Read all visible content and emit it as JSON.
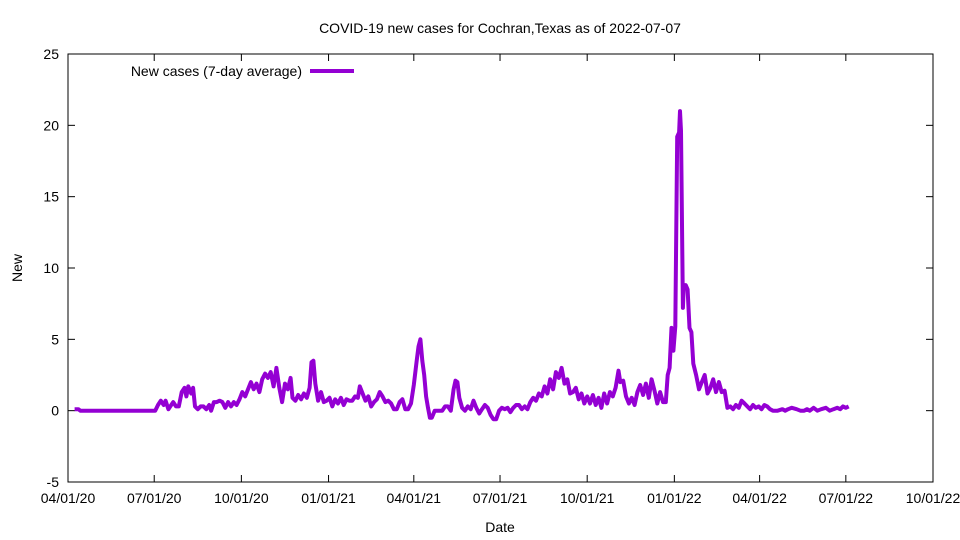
{
  "chart_data": {
    "type": "line",
    "title": "COVID-19 new cases for Cochran,Texas as of 2022-07-07",
    "xlabel": "Date",
    "ylabel": "New",
    "ylim": [
      -5,
      25
    ],
    "yticks": [
      -5,
      0,
      5,
      10,
      15,
      20,
      25
    ],
    "xlim": [
      "2020-04-01",
      "2022-10-01"
    ],
    "xticks": [
      {
        "date": "2020-04-01",
        "label": "04/01/20"
      },
      {
        "date": "2020-07-01",
        "label": "07/01/20"
      },
      {
        "date": "2020-10-01",
        "label": "10/01/20"
      },
      {
        "date": "2021-01-01",
        "label": "01/01/21"
      },
      {
        "date": "2021-04-01",
        "label": "04/01/21"
      },
      {
        "date": "2021-07-01",
        "label": "07/01/21"
      },
      {
        "date": "2021-10-01",
        "label": "10/01/21"
      },
      {
        "date": "2022-01-01",
        "label": "01/01/22"
      },
      {
        "date": "2022-04-01",
        "label": "04/01/22"
      },
      {
        "date": "2022-07-01",
        "label": "07/01/22"
      },
      {
        "date": "2022-10-01",
        "label": "10/01/22"
      }
    ],
    "legend": "top-left",
    "grid": false,
    "series": [
      {
        "name": "New cases (7-day average)",
        "color": "#9400d3",
        "points": [
          [
            "2020-04-08",
            0.1
          ],
          [
            "2020-04-12",
            0.1
          ],
          [
            "2020-04-14",
            0
          ],
          [
            "2020-05-15",
            0
          ],
          [
            "2020-06-20",
            0
          ],
          [
            "2020-07-02",
            0
          ],
          [
            "2020-07-05",
            0.4
          ],
          [
            "2020-07-08",
            0.7
          ],
          [
            "2020-07-11",
            0.4
          ],
          [
            "2020-07-13",
            0.7
          ],
          [
            "2020-07-16",
            0.1
          ],
          [
            "2020-07-18",
            0.3
          ],
          [
            "2020-07-21",
            0.6
          ],
          [
            "2020-07-24",
            0.3
          ],
          [
            "2020-07-27",
            0.3
          ],
          [
            "2020-07-30",
            1.3
          ],
          [
            "2020-08-02",
            1.6
          ],
          [
            "2020-08-04",
            1.0
          ],
          [
            "2020-08-06",
            1.7
          ],
          [
            "2020-08-09",
            1.2
          ],
          [
            "2020-08-11",
            1.6
          ],
          [
            "2020-08-13",
            0.3
          ],
          [
            "2020-08-16",
            0.1
          ],
          [
            "2020-08-19",
            0.3
          ],
          [
            "2020-08-22",
            0.3
          ],
          [
            "2020-08-25",
            0.1
          ],
          [
            "2020-08-28",
            0.4
          ],
          [
            "2020-08-30",
            0.0
          ],
          [
            "2020-09-02",
            0.6
          ],
          [
            "2020-09-05",
            0.6
          ],
          [
            "2020-09-08",
            0.7
          ],
          [
            "2020-09-11",
            0.6
          ],
          [
            "2020-09-14",
            0.2
          ],
          [
            "2020-09-17",
            0.6
          ],
          [
            "2020-09-20",
            0.3
          ],
          [
            "2020-09-23",
            0.6
          ],
          [
            "2020-09-26",
            0.4
          ],
          [
            "2020-09-29",
            0.8
          ],
          [
            "2020-10-02",
            1.3
          ],
          [
            "2020-10-05",
            1.0
          ],
          [
            "2020-10-08",
            1.5
          ],
          [
            "2020-10-11",
            2.0
          ],
          [
            "2020-10-14",
            1.5
          ],
          [
            "2020-10-17",
            1.9
          ],
          [
            "2020-10-20",
            1.3
          ],
          [
            "2020-10-23",
            2.2
          ],
          [
            "2020-10-26",
            2.6
          ],
          [
            "2020-10-29",
            2.3
          ],
          [
            "2020-11-01",
            2.7
          ],
          [
            "2020-11-04",
            1.7
          ],
          [
            "2020-11-07",
            3.0
          ],
          [
            "2020-11-10",
            1.6
          ],
          [
            "2020-11-13",
            0.6
          ],
          [
            "2020-11-16",
            1.9
          ],
          [
            "2020-11-19",
            1.5
          ],
          [
            "2020-11-22",
            2.3
          ],
          [
            "2020-11-24",
            0.9
          ],
          [
            "2020-11-27",
            0.7
          ],
          [
            "2020-11-30",
            1.1
          ],
          [
            "2020-12-03",
            0.8
          ],
          [
            "2020-12-06",
            1.2
          ],
          [
            "2020-12-09",
            0.9
          ],
          [
            "2020-12-12",
            1.6
          ],
          [
            "2020-12-14",
            3.4
          ],
          [
            "2020-12-16",
            3.5
          ],
          [
            "2020-12-18",
            1.9
          ],
          [
            "2020-12-21",
            0.7
          ],
          [
            "2020-12-24",
            1.3
          ],
          [
            "2020-12-27",
            0.6
          ],
          [
            "2020-12-30",
            0.7
          ],
          [
            "2021-01-02",
            0.9
          ],
          [
            "2021-01-05",
            0.3
          ],
          [
            "2021-01-08",
            0.8
          ],
          [
            "2021-01-11",
            0.5
          ],
          [
            "2021-01-14",
            0.9
          ],
          [
            "2021-01-17",
            0.4
          ],
          [
            "2021-01-20",
            0.8
          ],
          [
            "2021-01-23",
            0.7
          ],
          [
            "2021-01-26",
            0.7
          ],
          [
            "2021-01-29",
            1.0
          ],
          [
            "2021-02-01",
            0.9
          ],
          [
            "2021-02-03",
            1.7
          ],
          [
            "2021-02-06",
            1.2
          ],
          [
            "2021-02-09",
            0.7
          ],
          [
            "2021-02-12",
            1.0
          ],
          [
            "2021-02-15",
            0.3
          ],
          [
            "2021-02-18",
            0.6
          ],
          [
            "2021-02-21",
            0.8
          ],
          [
            "2021-02-24",
            1.3
          ],
          [
            "2021-02-27",
            1.0
          ],
          [
            "2021-03-02",
            0.6
          ],
          [
            "2021-03-05",
            0.7
          ],
          [
            "2021-03-08",
            0.5
          ],
          [
            "2021-03-11",
            0.1
          ],
          [
            "2021-03-14",
            0.1
          ],
          [
            "2021-03-17",
            0.6
          ],
          [
            "2021-03-20",
            0.8
          ],
          [
            "2021-03-23",
            0.1
          ],
          [
            "2021-03-26",
            0.1
          ],
          [
            "2021-03-29",
            0.5
          ],
          [
            "2021-04-01",
            1.8
          ],
          [
            "2021-04-04",
            3.5
          ],
          [
            "2021-04-06",
            4.5
          ],
          [
            "2021-04-08",
            5.0
          ],
          [
            "2021-04-10",
            3.5
          ],
          [
            "2021-04-12",
            2.5
          ],
          [
            "2021-04-14",
            1.0
          ],
          [
            "2021-04-16",
            0.2
          ],
          [
            "2021-04-18",
            -0.5
          ],
          [
            "2021-04-20",
            -0.5
          ],
          [
            "2021-04-23",
            0
          ],
          [
            "2021-04-27",
            0
          ],
          [
            "2021-05-01",
            0
          ],
          [
            "2021-05-04",
            0.3
          ],
          [
            "2021-05-07",
            0.3
          ],
          [
            "2021-05-10",
            0
          ],
          [
            "2021-05-13",
            1.5
          ],
          [
            "2021-05-15",
            2.1
          ],
          [
            "2021-05-17",
            2.0
          ],
          [
            "2021-05-19",
            0.9
          ],
          [
            "2021-05-22",
            0.2
          ],
          [
            "2021-05-25",
            0
          ],
          [
            "2021-05-28",
            0.3
          ],
          [
            "2021-05-31",
            0.1
          ],
          [
            "2021-06-03",
            0.7
          ],
          [
            "2021-06-06",
            0.2
          ],
          [
            "2021-06-09",
            -0.2
          ],
          [
            "2021-06-12",
            0.1
          ],
          [
            "2021-06-15",
            0.4
          ],
          [
            "2021-06-18",
            0.2
          ],
          [
            "2021-06-21",
            -0.3
          ],
          [
            "2021-06-24",
            -0.6
          ],
          [
            "2021-06-27",
            -0.6
          ],
          [
            "2021-06-30",
            0
          ],
          [
            "2021-07-03",
            0.2
          ],
          [
            "2021-07-06",
            0.1
          ],
          [
            "2021-07-09",
            0.2
          ],
          [
            "2021-07-12",
            -0.1
          ],
          [
            "2021-07-15",
            0.2
          ],
          [
            "2021-07-18",
            0.4
          ],
          [
            "2021-07-21",
            0.4
          ],
          [
            "2021-07-24",
            0.1
          ],
          [
            "2021-07-27",
            0.3
          ],
          [
            "2021-07-30",
            0.1
          ],
          [
            "2021-08-02",
            0.6
          ],
          [
            "2021-08-05",
            0.9
          ],
          [
            "2021-08-08",
            0.7
          ],
          [
            "2021-08-11",
            1.2
          ],
          [
            "2021-08-14",
            1.0
          ],
          [
            "2021-08-17",
            1.7
          ],
          [
            "2021-08-20",
            1.2
          ],
          [
            "2021-08-23",
            2.2
          ],
          [
            "2021-08-26",
            1.5
          ],
          [
            "2021-08-29",
            2.7
          ],
          [
            "2021-09-01",
            2.3
          ],
          [
            "2021-09-04",
            3.0
          ],
          [
            "2021-09-07",
            1.9
          ],
          [
            "2021-09-10",
            2.2
          ],
          [
            "2021-09-13",
            1.2
          ],
          [
            "2021-09-16",
            1.3
          ],
          [
            "2021-09-19",
            1.6
          ],
          [
            "2021-09-22",
            0.8
          ],
          [
            "2021-09-25",
            1.2
          ],
          [
            "2021-09-28",
            0.5
          ],
          [
            "2021-10-01",
            1.0
          ],
          [
            "2021-10-04",
            0.5
          ],
          [
            "2021-10-07",
            1.1
          ],
          [
            "2021-10-10",
            0.4
          ],
          [
            "2021-10-13",
            0.9
          ],
          [
            "2021-10-16",
            0.2
          ],
          [
            "2021-10-19",
            1.2
          ],
          [
            "2021-10-22",
            0.5
          ],
          [
            "2021-10-25",
            1.3
          ],
          [
            "2021-10-28",
            1.0
          ],
          [
            "2021-10-31",
            1.6
          ],
          [
            "2021-11-03",
            2.8
          ],
          [
            "2021-11-05",
            2.0
          ],
          [
            "2021-11-08",
            2.1
          ],
          [
            "2021-11-11",
            1.0
          ],
          [
            "2021-11-14",
            0.5
          ],
          [
            "2021-11-17",
            0.9
          ],
          [
            "2021-11-20",
            0.4
          ],
          [
            "2021-11-23",
            1.3
          ],
          [
            "2021-11-26",
            1.8
          ],
          [
            "2021-11-29",
            1.1
          ],
          [
            "2021-12-02",
            1.9
          ],
          [
            "2021-12-05",
            0.9
          ],
          [
            "2021-12-08",
            2.2
          ],
          [
            "2021-12-11",
            1.4
          ],
          [
            "2021-12-14",
            0.5
          ],
          [
            "2021-12-17",
            1.3
          ],
          [
            "2021-12-20",
            0.6
          ],
          [
            "2021-12-23",
            0.6
          ],
          [
            "2021-12-25",
            2.5
          ],
          [
            "2021-12-27",
            3.0
          ],
          [
            "2021-12-29",
            5.8
          ],
          [
            "2021-12-31",
            4.2
          ],
          [
            "2022-01-02",
            5.9
          ],
          [
            "2022-01-04",
            19.2
          ],
          [
            "2022-01-06",
            19.5
          ],
          [
            "2022-01-07",
            21.0
          ],
          [
            "2022-01-08",
            19.6
          ],
          [
            "2022-01-10",
            7.2
          ],
          [
            "2022-01-11",
            8.8
          ],
          [
            "2022-01-13",
            8.8
          ],
          [
            "2022-01-15",
            8.5
          ],
          [
            "2022-01-17",
            5.8
          ],
          [
            "2022-01-19",
            5.5
          ],
          [
            "2022-01-21",
            3.3
          ],
          [
            "2022-01-24",
            2.5
          ],
          [
            "2022-01-27",
            1.5
          ],
          [
            "2022-01-30",
            2.0
          ],
          [
            "2022-02-02",
            2.5
          ],
          [
            "2022-02-05",
            1.2
          ],
          [
            "2022-02-08",
            1.6
          ],
          [
            "2022-02-11",
            2.2
          ],
          [
            "2022-02-14",
            1.3
          ],
          [
            "2022-02-17",
            2.0
          ],
          [
            "2022-02-20",
            1.3
          ],
          [
            "2022-02-23",
            1.4
          ],
          [
            "2022-02-26",
            0.2
          ],
          [
            "2022-03-01",
            0.3
          ],
          [
            "2022-03-04",
            0.1
          ],
          [
            "2022-03-07",
            0.4
          ],
          [
            "2022-03-10",
            0.2
          ],
          [
            "2022-03-13",
            0.7
          ],
          [
            "2022-03-16",
            0.5
          ],
          [
            "2022-03-19",
            0.3
          ],
          [
            "2022-03-22",
            0.1
          ],
          [
            "2022-03-25",
            0.4
          ],
          [
            "2022-03-28",
            0.2
          ],
          [
            "2022-03-31",
            0.3
          ],
          [
            "2022-04-03",
            0.1
          ],
          [
            "2022-04-06",
            0.4
          ],
          [
            "2022-04-09",
            0.3
          ],
          [
            "2022-04-12",
            0.1
          ],
          [
            "2022-04-15",
            0
          ],
          [
            "2022-04-20",
            0
          ],
          [
            "2022-04-25",
            0.1
          ],
          [
            "2022-04-28",
            0
          ],
          [
            "2022-05-01",
            0.1
          ],
          [
            "2022-05-05",
            0.2
          ],
          [
            "2022-05-10",
            0.1
          ],
          [
            "2022-05-14",
            0
          ],
          [
            "2022-05-18",
            0
          ],
          [
            "2022-05-21",
            0.1
          ],
          [
            "2022-05-24",
            0
          ],
          [
            "2022-05-28",
            0.2
          ],
          [
            "2022-06-01",
            0
          ],
          [
            "2022-06-05",
            0.1
          ],
          [
            "2022-06-10",
            0.2
          ],
          [
            "2022-06-14",
            0
          ],
          [
            "2022-06-18",
            0.1
          ],
          [
            "2022-06-22",
            0.2
          ],
          [
            "2022-06-25",
            0.1
          ],
          [
            "2022-06-28",
            0.3
          ],
          [
            "2022-07-01",
            0.2
          ],
          [
            "2022-07-04",
            0.3
          ]
        ]
      }
    ]
  }
}
